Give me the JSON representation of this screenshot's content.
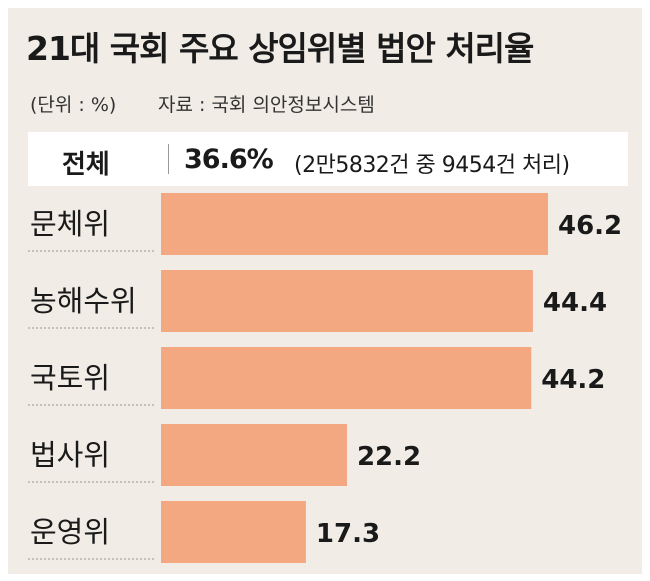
{
  "title": "21대 국회 주요 상임위별 법안 처리율",
  "unit": "(단위 : %)",
  "source": "자료 : 국회 의안정보시스템",
  "total": {
    "label": "전체",
    "value": "36.6%",
    "note": "(2만5832건 중 9454건 처리)"
  },
  "colors": {
    "bar": "#f3a882",
    "background": "#f1ece6"
  },
  "chart_data": {
    "type": "bar",
    "orientation": "horizontal",
    "title": "21대 국회 주요 상임위별 법안 처리율",
    "unit": "%",
    "categories": [
      "문체위",
      "농해수위",
      "국토위",
      "법사위",
      "운영위"
    ],
    "values": [
      46.2,
      44.4,
      44.2,
      22.2,
      17.3
    ],
    "value_labels": [
      "46.2",
      "44.4",
      "44.2",
      "22.2",
      "17.3"
    ],
    "xlim": [
      0,
      50
    ],
    "grid": false,
    "legend": "none"
  }
}
